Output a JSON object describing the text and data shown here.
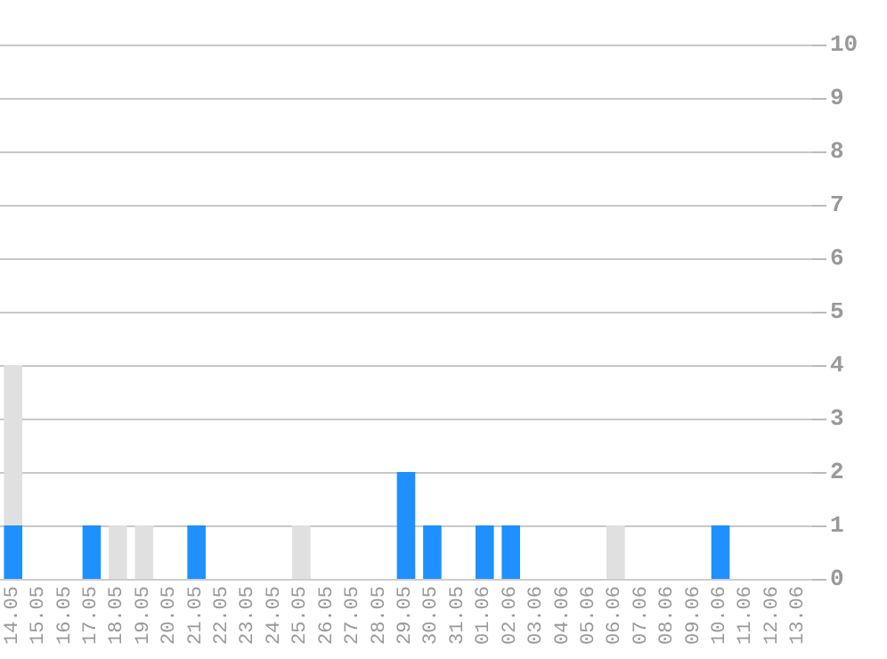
{
  "chart_data": {
    "type": "bar",
    "stacked": true,
    "categories": [
      "14.05",
      "15.05",
      "16.05",
      "17.05",
      "18.05",
      "19.05",
      "20.05",
      "21.05",
      "22.05",
      "23.05",
      "24.05",
      "25.05",
      "26.05",
      "27.05",
      "28.05",
      "29.05",
      "30.05",
      "31.05",
      "01.06",
      "02.06",
      "03.06",
      "04.06",
      "05.06",
      "06.06",
      "07.06",
      "08.06",
      "09.06",
      "10.06",
      "11.06",
      "12.06",
      "13.06"
    ],
    "series": [
      {
        "color": "#1e90ff",
        "values": [
          1,
          0,
          0,
          1,
          0,
          0,
          0,
          1,
          0,
          0,
          0,
          0,
          0,
          0,
          0,
          2,
          1,
          0,
          1,
          1,
          0,
          0,
          0,
          0,
          0,
          0,
          0,
          1,
          0,
          0,
          0
        ]
      },
      {
        "color": "#e0e0e0",
        "values": [
          3,
          0,
          0,
          0,
          1,
          1,
          0,
          0,
          0,
          0,
          0,
          1,
          0,
          0,
          0,
          0,
          0,
          0,
          0,
          0,
          0,
          0,
          0,
          1,
          0,
          0,
          0,
          0,
          0,
          0,
          0
        ]
      }
    ],
    "ylim": [
      0,
      10
    ],
    "yticks": [
      0,
      1,
      2,
      3,
      4,
      5,
      6,
      7,
      8,
      9,
      10
    ],
    "grid": "y"
  }
}
